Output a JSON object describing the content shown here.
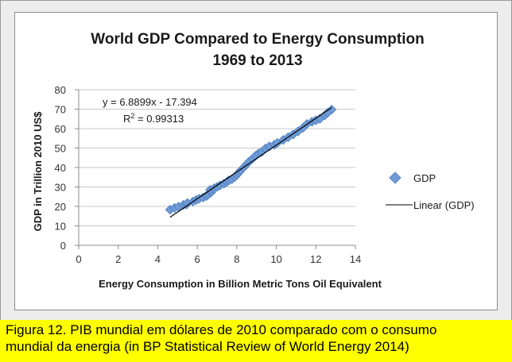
{
  "chart_data": {
    "type": "scatter",
    "title": [
      "World GDP Compared to Energy Consumption",
      "1969 to 2013"
    ],
    "xlabel": "Energy Consumption in Billion Metric Tons Oil Equivalent",
    "ylabel": "GDP in Trillion 2010 US$",
    "xlim": [
      0,
      14
    ],
    "ylim": [
      0,
      80
    ],
    "x_ticks": [
      "0",
      "2",
      "4",
      "6",
      "8",
      "10",
      "12",
      "14"
    ],
    "y_ticks": [
      "0",
      "10",
      "20",
      "30",
      "40",
      "50",
      "60",
      "70",
      "80"
    ],
    "grid": "horizontal",
    "legend_position": "right",
    "series": [
      {
        "name": "GDP",
        "marker": "diamond",
        "color": "#6f9bd6",
        "points": [
          [
            4.62,
            18.3
          ],
          [
            4.85,
            19.2
          ],
          [
            5.05,
            19.9
          ],
          [
            5.3,
            20.8
          ],
          [
            5.45,
            21.0
          ],
          [
            5.5,
            21.7
          ],
          [
            5.78,
            22.5
          ],
          [
            5.95,
            23.3
          ],
          [
            6.1,
            24.0
          ],
          [
            6.3,
            24.6
          ],
          [
            6.45,
            25.3
          ],
          [
            6.55,
            26.0
          ],
          [
            6.7,
            27.2
          ],
          [
            6.65,
            28.5
          ],
          [
            6.85,
            29.3
          ],
          [
            7.0,
            30.0
          ],
          [
            7.15,
            30.8
          ],
          [
            7.35,
            31.7
          ],
          [
            7.5,
            32.6
          ],
          [
            7.6,
            33.4
          ],
          [
            7.75,
            34.0
          ],
          [
            7.9,
            35.1
          ],
          [
            8.0,
            36.2
          ],
          [
            8.1,
            37.3
          ],
          [
            8.2,
            38.5
          ],
          [
            8.35,
            40.0
          ],
          [
            8.5,
            41.7
          ],
          [
            8.62,
            43.0
          ],
          [
            8.8,
            44.6
          ],
          [
            8.95,
            46.0
          ],
          [
            9.1,
            47.2
          ],
          [
            9.25,
            48.0
          ],
          [
            9.45,
            49.8
          ],
          [
            9.65,
            50.9
          ],
          [
            9.9,
            51.7
          ],
          [
            10.05,
            52.6
          ],
          [
            10.35,
            54.2
          ],
          [
            10.6,
            55.6
          ],
          [
            10.85,
            57.0
          ],
          [
            11.1,
            58.6
          ],
          [
            11.35,
            60.4
          ],
          [
            11.55,
            62.4
          ],
          [
            11.8,
            63.5
          ],
          [
            12.0,
            64.3
          ],
          [
            12.2,
            65.0
          ],
          [
            12.45,
            66.8
          ],
          [
            12.6,
            68.2
          ],
          [
            12.8,
            69.8
          ]
        ]
      },
      {
        "name": "Linear (GDP)",
        "type": "trendline",
        "color": "#000000",
        "slope": 6.8899,
        "intercept": -17.394,
        "x_range": [
          4.62,
          12.8
        ]
      }
    ],
    "annotations": {
      "equation": "y = 6.8899x - 17.394",
      "r2_label": "R",
      "r2_sup": "2",
      "r2_value": " = 0.99313"
    }
  },
  "caption": {
    "line1": "Figura 12.  PIB mundial em dólares de 2010 comparado com o consumo",
    "line2": "mundial da energia (in BP Statistical Review of World Energy 2014)"
  }
}
